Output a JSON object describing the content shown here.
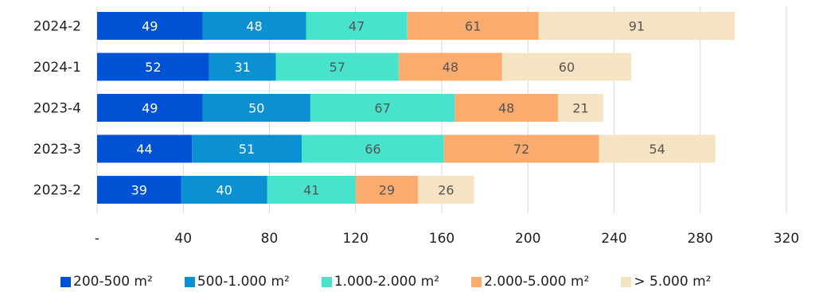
{
  "chart_data": {
    "type": "bar",
    "orientation": "horizontal",
    "stacked": true,
    "categories": [
      "2024-2",
      "2024-1",
      "2023-4",
      "2023-3",
      "2023-2"
    ],
    "series": [
      {
        "name": "200-500 m²",
        "color": "#0052d4",
        "values": [
          49,
          52,
          49,
          44,
          39
        ]
      },
      {
        "name": "500-1.000 m²",
        "color": "#0b90d1",
        "values": [
          48,
          31,
          50,
          51,
          40
        ]
      },
      {
        "name": "1.000-2.000 m²",
        "color": "#48e3cd",
        "values": [
          47,
          57,
          67,
          66,
          41
        ]
      },
      {
        "name": "2.000-5.000 m²",
        "color": "#fbab6e",
        "values": [
          61,
          48,
          48,
          72,
          29
        ]
      },
      {
        "name": "> 5.000 m²",
        "color": "#f6e3c3",
        "values": [
          91,
          60,
          21,
          54,
          26
        ]
      }
    ],
    "x_ticks": [
      "-",
      "40",
      "80",
      "120",
      "160",
      "200",
      "240",
      "280",
      "320"
    ],
    "xlim": [
      0,
      320
    ],
    "grid": true,
    "legend_position": "bottom"
  }
}
